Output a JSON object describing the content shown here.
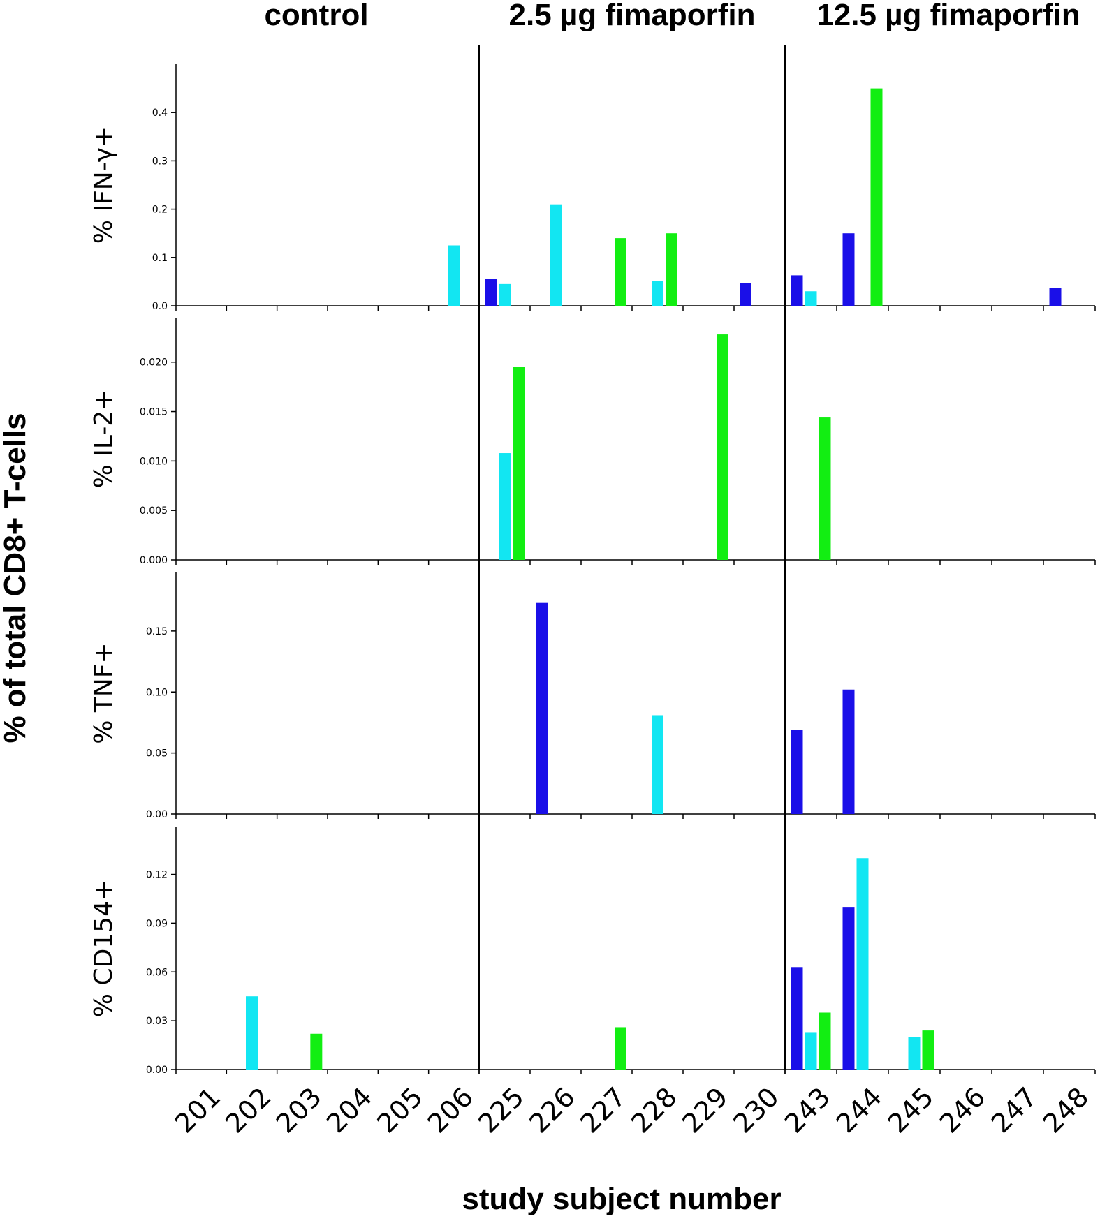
{
  "chart_data": {
    "type": "bar",
    "ylabel": "% of total CD8+ T-cells",
    "xlabel": "study subject number",
    "groups": [
      {
        "title": "control",
        "subjects": [
          "201",
          "202",
          "203",
          "204",
          "205",
          "206"
        ]
      },
      {
        "title": "2.5 µg fimaporfin",
        "subjects": [
          "225",
          "226",
          "227",
          "228",
          "229",
          "230"
        ]
      },
      {
        "title": "12.5 µg fimaporfin",
        "subjects": [
          "243",
          "244",
          "245",
          "246",
          "247",
          "248"
        ]
      }
    ],
    "series_colors": [
      "#1a0fe8",
      "#12e6f2",
      "#12ee12"
    ],
    "panels": [
      {
        "ylabel": "% IFN-γ+",
        "ylim": [
          0,
          0.5
        ],
        "yticks": [
          0.0,
          0.1,
          0.2,
          0.3,
          0.4
        ],
        "tick_labels": [
          "0.0",
          "0.1",
          "0.2",
          "0.3",
          "0.4"
        ],
        "values": [
          [
            0,
            0,
            0
          ],
          [
            0,
            0,
            0
          ],
          [
            0,
            0,
            0
          ],
          [
            0,
            0,
            0
          ],
          [
            0,
            0,
            0
          ],
          [
            0,
            0.125,
            0
          ],
          [
            0.055,
            0.045,
            0
          ],
          [
            0,
            0.21,
            0
          ],
          [
            0,
            0,
            0.14
          ],
          [
            0,
            0.052,
            0.15
          ],
          [
            0,
            0,
            0
          ],
          [
            0.047,
            0,
            0
          ],
          [
            0.063,
            0.03,
            0
          ],
          [
            0.15,
            0,
            0.45
          ],
          [
            0,
            0,
            0
          ],
          [
            0,
            0,
            0
          ],
          [
            0,
            0,
            0
          ],
          [
            0.037,
            0,
            0
          ]
        ]
      },
      {
        "ylabel": "% IL-2+",
        "ylim": [
          0,
          0.0245
        ],
        "yticks": [
          0.0,
          0.005,
          0.01,
          0.015,
          0.02
        ],
        "tick_labels": [
          "0.000",
          "0.005",
          "0.010",
          "0.015",
          "0.020"
        ],
        "values": [
          [
            0,
            0,
            0
          ],
          [
            0,
            0,
            0
          ],
          [
            0,
            0,
            0
          ],
          [
            0,
            0,
            0
          ],
          [
            0,
            0,
            0
          ],
          [
            0,
            0,
            0
          ],
          [
            0,
            0.0108,
            0.0195
          ],
          [
            0,
            0,
            0
          ],
          [
            0,
            0,
            0
          ],
          [
            0,
            0,
            0
          ],
          [
            0,
            0,
            0.0228
          ],
          [
            0,
            0,
            0
          ],
          [
            0,
            0,
            0.0144
          ],
          [
            0,
            0,
            0
          ],
          [
            0,
            0,
            0
          ],
          [
            0,
            0,
            0
          ],
          [
            0,
            0,
            0
          ],
          [
            0,
            0,
            0
          ]
        ]
      },
      {
        "ylabel": "% TNF+",
        "ylim": [
          0,
          0.198
        ],
        "yticks": [
          0.0,
          0.05,
          0.1,
          0.15
        ],
        "tick_labels": [
          "0.00",
          "0.05",
          "0.10",
          "0.15"
        ],
        "values": [
          [
            0,
            0,
            0
          ],
          [
            0,
            0,
            0
          ],
          [
            0,
            0,
            0
          ],
          [
            0,
            0,
            0
          ],
          [
            0,
            0,
            0
          ],
          [
            0,
            0,
            0
          ],
          [
            0,
            0,
            0
          ],
          [
            0.173,
            0,
            0
          ],
          [
            0,
            0,
            0
          ],
          [
            0,
            0.081,
            0
          ],
          [
            0,
            0,
            0
          ],
          [
            0,
            0,
            0
          ],
          [
            0.069,
            0,
            0
          ],
          [
            0.102,
            0,
            0
          ],
          [
            0,
            0,
            0
          ],
          [
            0,
            0,
            0
          ],
          [
            0,
            0,
            0
          ],
          [
            0,
            0,
            0
          ]
        ]
      },
      {
        "ylabel": "% CD154+",
        "ylim": [
          0,
          0.149
        ],
        "yticks": [
          0.0,
          0.03,
          0.06,
          0.09,
          0.12
        ],
        "tick_labels": [
          "0.00",
          "0.03",
          "0.06",
          "0.09",
          "0.12"
        ],
        "values": [
          [
            0,
            0,
            0
          ],
          [
            0,
            0.045,
            0
          ],
          [
            0,
            0,
            0.022
          ],
          [
            0,
            0,
            0
          ],
          [
            0,
            0,
            0
          ],
          [
            0,
            0,
            0
          ],
          [
            0,
            0,
            0
          ],
          [
            0,
            0,
            0
          ],
          [
            0,
            0,
            0.026
          ],
          [
            0,
            0,
            0
          ],
          [
            0,
            0,
            0
          ],
          [
            0,
            0,
            0
          ],
          [
            0.063,
            0.023,
            0.035
          ],
          [
            0.1,
            0.13,
            0
          ],
          [
            0,
            0.02,
            0.024
          ],
          [
            0,
            0,
            0
          ],
          [
            0,
            0,
            0
          ],
          [
            0,
            0,
            0
          ]
        ]
      }
    ]
  }
}
